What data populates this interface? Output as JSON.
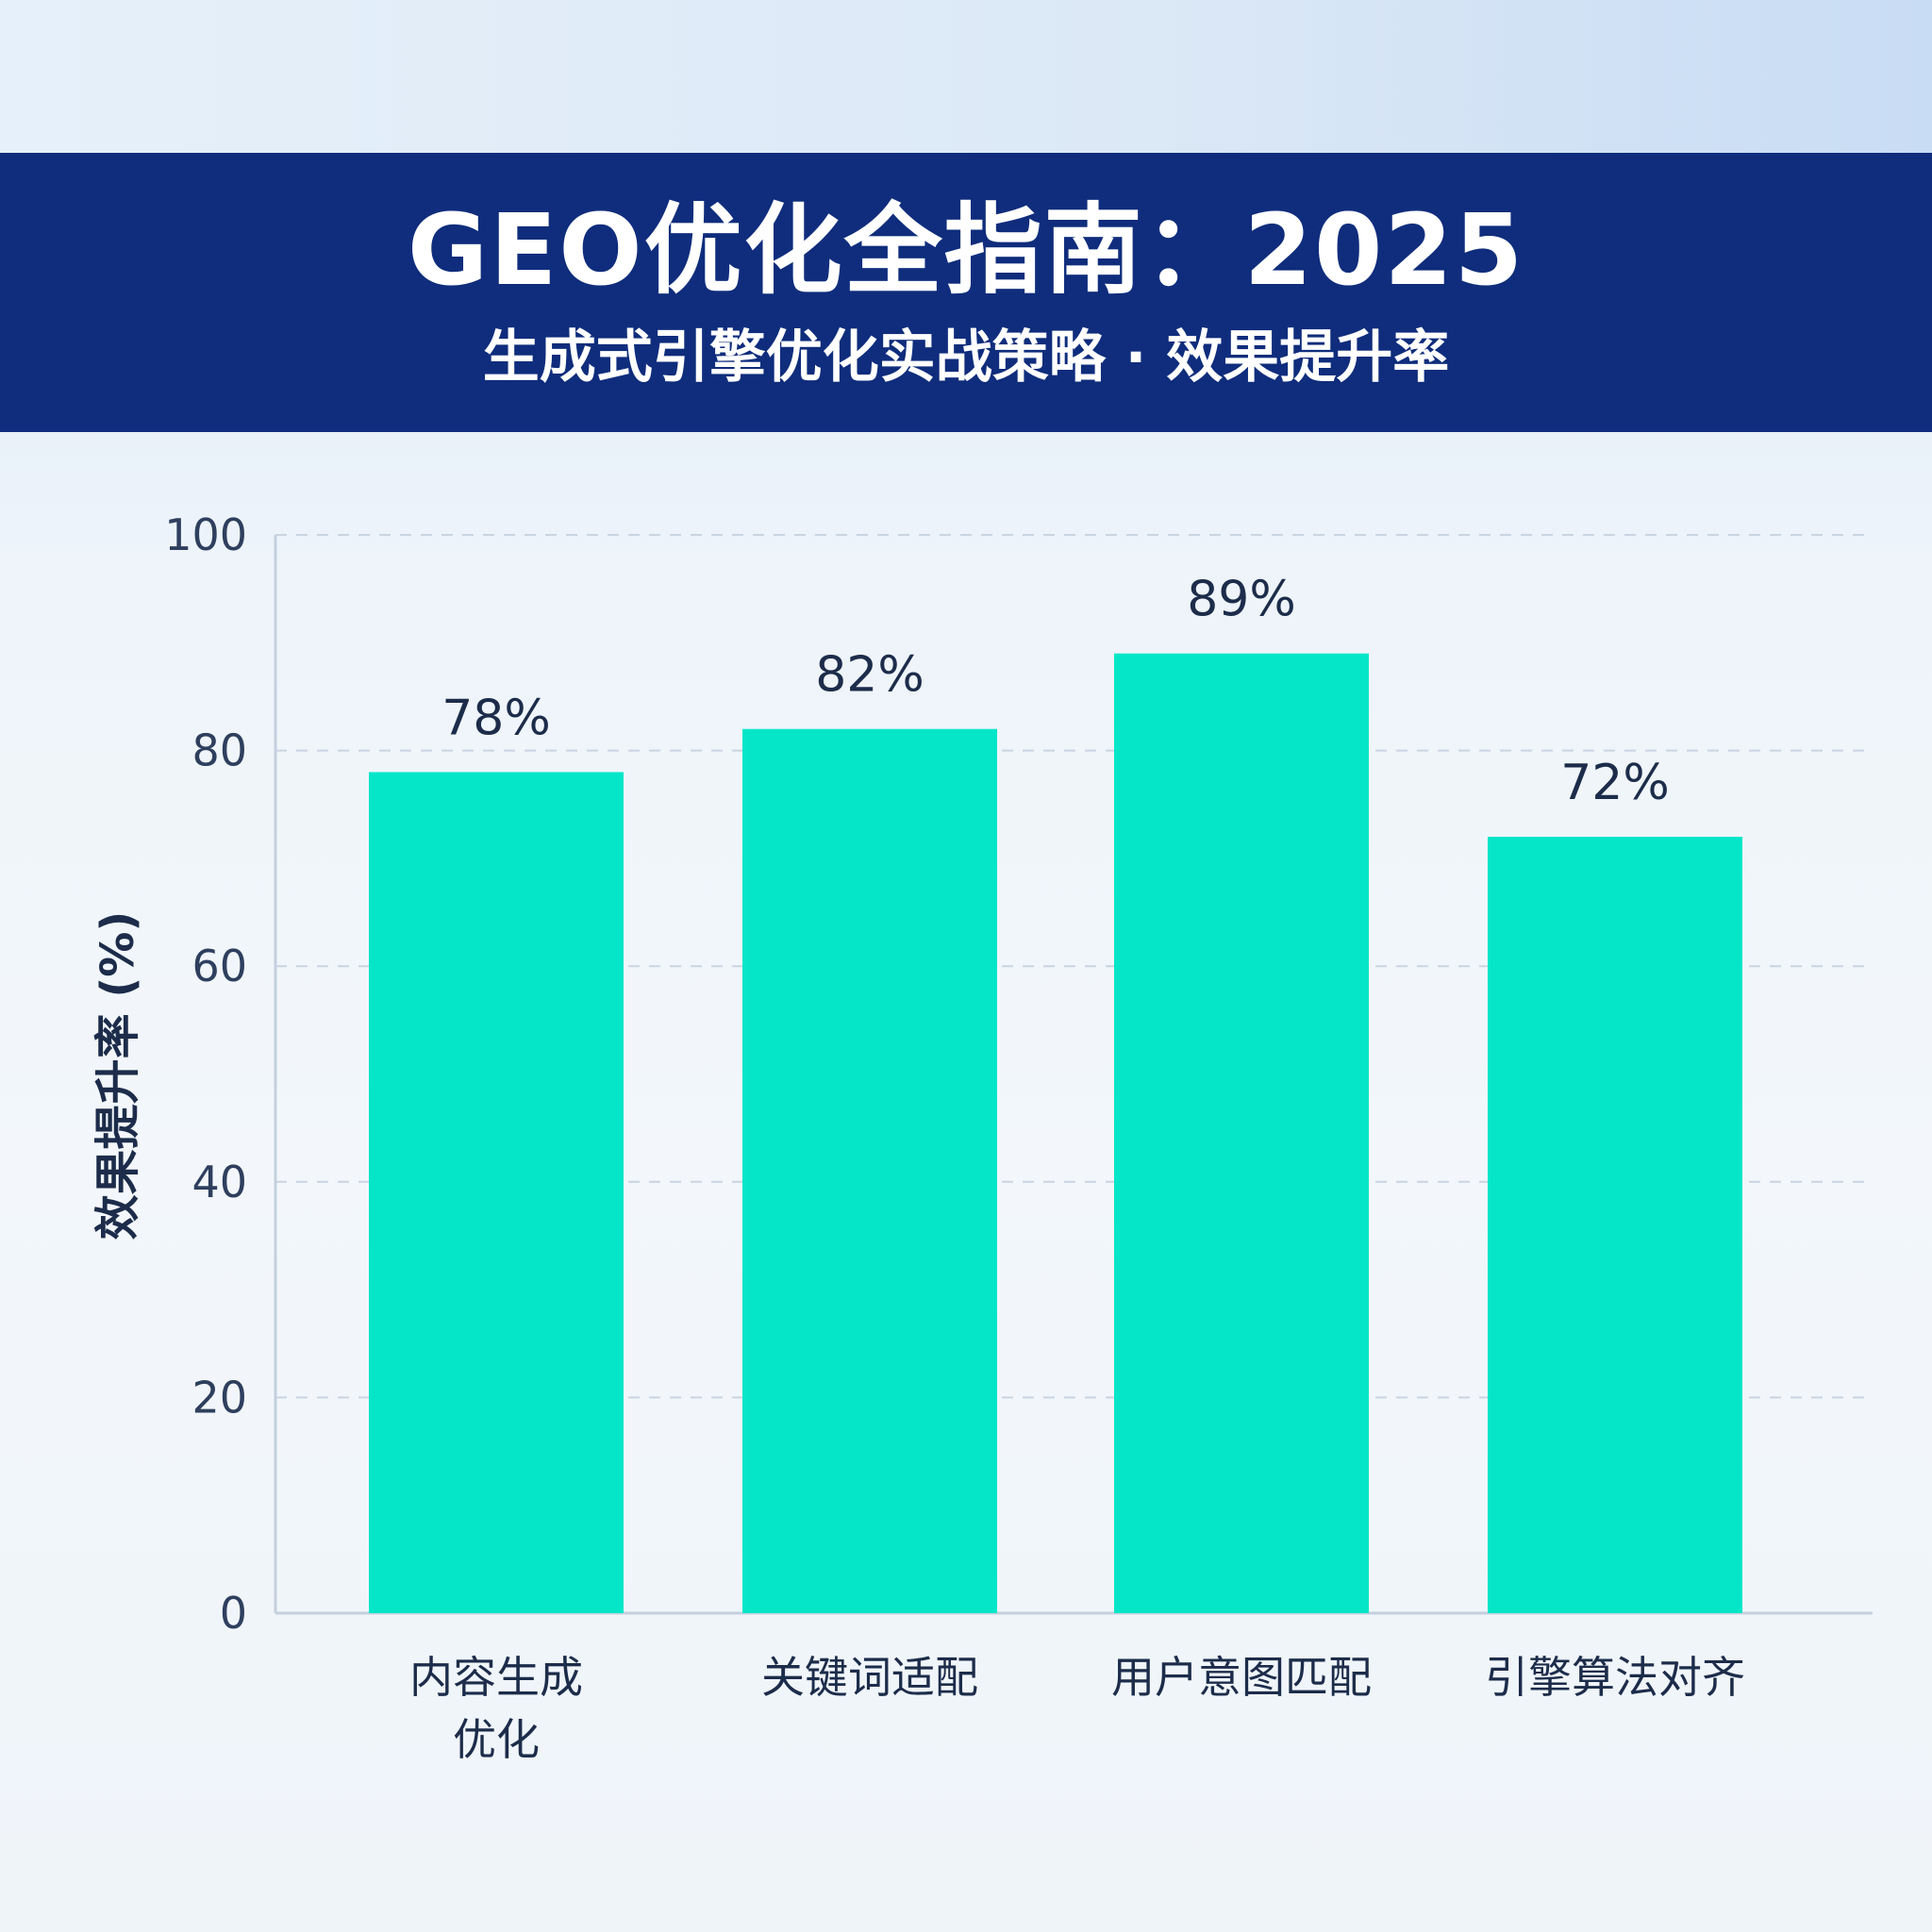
{
  "header": {
    "title": "GEO优化全指南：2025",
    "subtitle": "生成式引擎优化实战策略 · 效果提升率"
  },
  "chart_data": {
    "type": "bar",
    "ylabel": "效果提升率 (%)",
    "xlabel": "",
    "categories": [
      "内容生成优化",
      "关键词适配",
      "用户意图匹配",
      "引擎算法对齐"
    ],
    "category_lines": [
      [
        "内容生成",
        "优化"
      ],
      [
        "关键词适配"
      ],
      [
        "用户意图匹配"
      ],
      [
        "引擎算法对齐"
      ]
    ],
    "series": [
      {
        "values": [
          78,
          82,
          89,
          72
        ],
        "labels": [
          "78%",
          "82%",
          "89%",
          "72%"
        ]
      }
    ],
    "ylim": [
      0,
      100
    ],
    "yticks": [
      0,
      20,
      40,
      60,
      80,
      100
    ],
    "grid": true,
    "legend": "none",
    "colors": {
      "bar": "#05e6c8",
      "grid": "#c9d4e2",
      "axis": "#c4d0de",
      "text": "#1c2c4a",
      "tick": "#2e3f5e"
    }
  }
}
